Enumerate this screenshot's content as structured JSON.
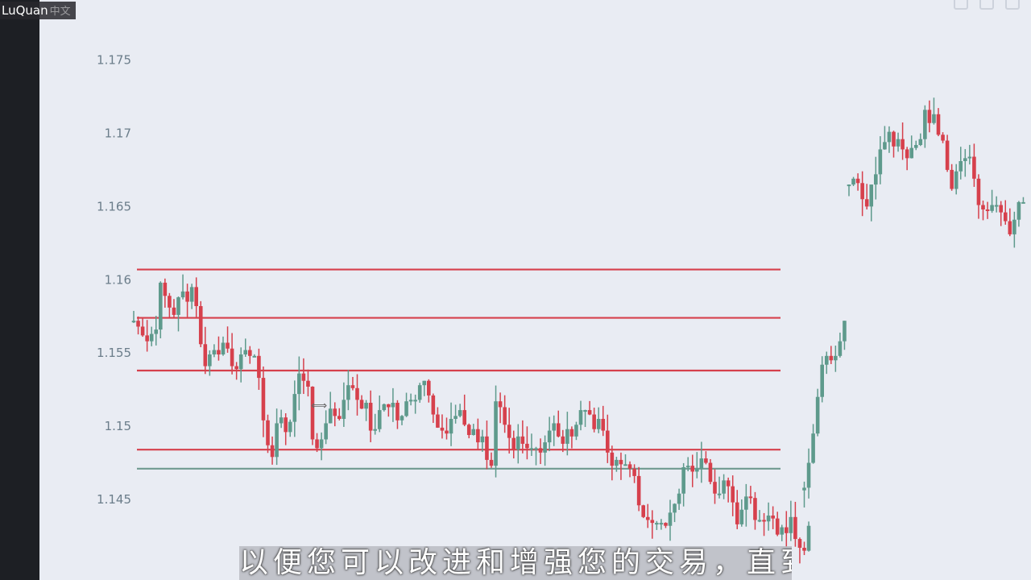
{
  "app": {
    "watermark": "LuQuan",
    "watermark_suffix": "中文",
    "caption": "以便您可以改进和增强您的交易，直到"
  },
  "colors": {
    "background": "#e9ecf3",
    "up": "#5e9a8c",
    "down": "#d6404c",
    "level_line": "#d6404c",
    "support_line": "#6f9a90",
    "axis_text": "#6b7d8a"
  },
  "chart_data": {
    "type": "candlestick",
    "title": "",
    "xlabel": "",
    "ylabel": "",
    "ylim": [
      1.1395,
      1.1791
    ],
    "y_ticks": [
      1.145,
      1.15,
      1.155,
      1.16,
      1.165,
      1.17,
      1.175
    ],
    "y_tick_labels": [
      "1.145",
      "1.15",
      "1.155",
      "1.16",
      "1.165",
      "1.17",
      "1.175"
    ],
    "grid": false,
    "horizontal_levels": [
      {
        "price": 1.1607,
        "color": "down"
      },
      {
        "price": 1.1574,
        "color": "down"
      },
      {
        "price": 1.1538,
        "color": "down"
      },
      {
        "price": 1.1484,
        "color": "down"
      },
      {
        "price": 1.1471,
        "color": "up"
      }
    ],
    "segments": [
      {
        "start": 0,
        "end": 150,
        "closes": [
          1.1572,
          1.1568,
          1.1562,
          1.1558,
          1.1563,
          1.1566,
          1.1598,
          1.1589,
          1.1581,
          1.1576,
          1.1588,
          1.1592,
          1.1585,
          1.1595,
          1.1582,
          1.1556,
          1.1541,
          1.1549,
          1.1552,
          1.1549,
          1.1557,
          1.1553,
          1.1541,
          1.1539,
          1.1549,
          1.1552,
          1.1548,
          1.1548,
          1.1533,
          1.1504,
          1.1487,
          1.1479,
          1.1502,
          1.1506,
          1.1496,
          1.1503,
          1.1522,
          1.1536,
          1.1531,
          1.1527,
          1.1491,
          1.1485,
          1.1491,
          1.1502,
          1.1512,
          1.1507,
          1.1505,
          1.1518,
          1.1528,
          1.1526,
          1.1518,
          1.1512,
          1.1516,
          1.1497,
          1.1498,
          1.1511,
          1.1515,
          1.1513,
          1.1516,
          1.1504,
          1.1507,
          1.1517,
          1.1518,
          1.1518,
          1.1528,
          1.1531,
          1.1521,
          1.1508,
          1.1499,
          1.1497,
          1.1495,
          1.1505,
          1.1507,
          1.1511,
          1.1501,
          1.1494,
          1.1498,
          1.1489,
          1.1493,
          1.1477,
          1.1473,
          1.1517,
          1.1513,
          1.1501,
          1.1492,
          1.1484,
          1.1493,
          1.1488,
          1.1485,
          1.1485,
          1.1485,
          1.1482,
          1.1489,
          1.1497,
          1.1502,
          1.1493,
          1.1488,
          1.1498,
          1.1493,
          1.1501,
          1.1511,
          1.1511,
          1.1508,
          1.1498,
          1.1505,
          1.1497,
          1.1482,
          1.1473,
          1.1477,
          1.1474,
          1.1474,
          1.1471,
          1.1466,
          1.1446,
          1.1438,
          1.1436,
          1.1434,
          1.1434,
          1.1434,
          1.1432,
          1.1441,
          1.1447,
          1.1454,
          1.1472,
          1.1473,
          1.1469,
          1.1471,
          1.1478,
          1.1475,
          1.1462,
          1.1454,
          1.1454,
          1.1463,
          1.1459,
          1.1448,
          1.1433,
          1.1443,
          1.1452,
          1.1451,
          1.1436,
          1.1436,
          1.1435,
          1.1439,
          1.1437,
          1.1426,
          1.1431,
          1.1427,
          1.1438,
          1.1423,
          1.1417,
          1.1415,
          1.1432
        ]
      },
      {
        "start": 150,
        "end": 160,
        "closes": [
          1.1458,
          1.1475,
          1.1495,
          1.152,
          1.1542,
          1.1548,
          1.1545,
          1.1548,
          1.1558,
          1.1572
        ]
      },
      {
        "start": 160,
        "end": 200,
        "closes": [
          1.1665,
          1.1669,
          1.1666,
          1.1655,
          1.165,
          1.1665,
          1.1672,
          1.1689,
          1.1694,
          1.1701,
          1.1691,
          1.1696,
          1.1689,
          1.1683,
          1.169,
          1.1692,
          1.1696,
          1.1716,
          1.1707,
          1.1713,
          1.1699,
          1.1695,
          1.1675,
          1.1662,
          1.1674,
          1.1681,
          1.1683,
          1.1684,
          1.1669,
          1.1651,
          1.1648,
          1.1647,
          1.1651,
          1.1651,
          1.1646,
          1.164,
          1.1631,
          1.1641,
          1.1653,
          1.1653
        ]
      }
    ]
  }
}
